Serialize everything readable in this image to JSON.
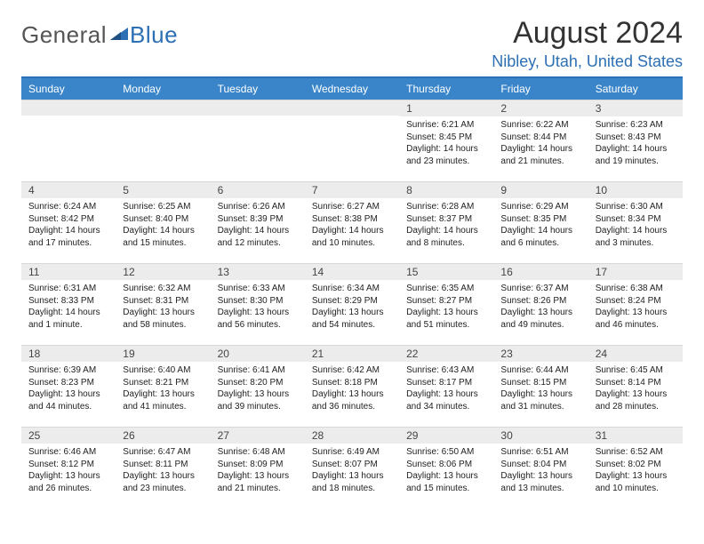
{
  "logo": {
    "general": "General",
    "blue": "Blue"
  },
  "title": "August 2024",
  "location": "Nibley, Utah, United States",
  "colors": {
    "header_bg": "#3a85c9",
    "accent": "#2c6fb5",
    "daynum_bg": "#ececec",
    "text": "#222222"
  },
  "weekdays": [
    "Sunday",
    "Monday",
    "Tuesday",
    "Wednesday",
    "Thursday",
    "Friday",
    "Saturday"
  ],
  "weeks": [
    [
      null,
      null,
      null,
      null,
      {
        "n": "1",
        "sr": "6:21 AM",
        "ss": "8:45 PM",
        "dl": "14 hours and 23 minutes."
      },
      {
        "n": "2",
        "sr": "6:22 AM",
        "ss": "8:44 PM",
        "dl": "14 hours and 21 minutes."
      },
      {
        "n": "3",
        "sr": "6:23 AM",
        "ss": "8:43 PM",
        "dl": "14 hours and 19 minutes."
      }
    ],
    [
      {
        "n": "4",
        "sr": "6:24 AM",
        "ss": "8:42 PM",
        "dl": "14 hours and 17 minutes."
      },
      {
        "n": "5",
        "sr": "6:25 AM",
        "ss": "8:40 PM",
        "dl": "14 hours and 15 minutes."
      },
      {
        "n": "6",
        "sr": "6:26 AM",
        "ss": "8:39 PM",
        "dl": "14 hours and 12 minutes."
      },
      {
        "n": "7",
        "sr": "6:27 AM",
        "ss": "8:38 PM",
        "dl": "14 hours and 10 minutes."
      },
      {
        "n": "8",
        "sr": "6:28 AM",
        "ss": "8:37 PM",
        "dl": "14 hours and 8 minutes."
      },
      {
        "n": "9",
        "sr": "6:29 AM",
        "ss": "8:35 PM",
        "dl": "14 hours and 6 minutes."
      },
      {
        "n": "10",
        "sr": "6:30 AM",
        "ss": "8:34 PM",
        "dl": "14 hours and 3 minutes."
      }
    ],
    [
      {
        "n": "11",
        "sr": "6:31 AM",
        "ss": "8:33 PM",
        "dl": "14 hours and 1 minute."
      },
      {
        "n": "12",
        "sr": "6:32 AM",
        "ss": "8:31 PM",
        "dl": "13 hours and 58 minutes."
      },
      {
        "n": "13",
        "sr": "6:33 AM",
        "ss": "8:30 PM",
        "dl": "13 hours and 56 minutes."
      },
      {
        "n": "14",
        "sr": "6:34 AM",
        "ss": "8:29 PM",
        "dl": "13 hours and 54 minutes."
      },
      {
        "n": "15",
        "sr": "6:35 AM",
        "ss": "8:27 PM",
        "dl": "13 hours and 51 minutes."
      },
      {
        "n": "16",
        "sr": "6:37 AM",
        "ss": "8:26 PM",
        "dl": "13 hours and 49 minutes."
      },
      {
        "n": "17",
        "sr": "6:38 AM",
        "ss": "8:24 PM",
        "dl": "13 hours and 46 minutes."
      }
    ],
    [
      {
        "n": "18",
        "sr": "6:39 AM",
        "ss": "8:23 PM",
        "dl": "13 hours and 44 minutes."
      },
      {
        "n": "19",
        "sr": "6:40 AM",
        "ss": "8:21 PM",
        "dl": "13 hours and 41 minutes."
      },
      {
        "n": "20",
        "sr": "6:41 AM",
        "ss": "8:20 PM",
        "dl": "13 hours and 39 minutes."
      },
      {
        "n": "21",
        "sr": "6:42 AM",
        "ss": "8:18 PM",
        "dl": "13 hours and 36 minutes."
      },
      {
        "n": "22",
        "sr": "6:43 AM",
        "ss": "8:17 PM",
        "dl": "13 hours and 34 minutes."
      },
      {
        "n": "23",
        "sr": "6:44 AM",
        "ss": "8:15 PM",
        "dl": "13 hours and 31 minutes."
      },
      {
        "n": "24",
        "sr": "6:45 AM",
        "ss": "8:14 PM",
        "dl": "13 hours and 28 minutes."
      }
    ],
    [
      {
        "n": "25",
        "sr": "6:46 AM",
        "ss": "8:12 PM",
        "dl": "13 hours and 26 minutes."
      },
      {
        "n": "26",
        "sr": "6:47 AM",
        "ss": "8:11 PM",
        "dl": "13 hours and 23 minutes."
      },
      {
        "n": "27",
        "sr": "6:48 AM",
        "ss": "8:09 PM",
        "dl": "13 hours and 21 minutes."
      },
      {
        "n": "28",
        "sr": "6:49 AM",
        "ss": "8:07 PM",
        "dl": "13 hours and 18 minutes."
      },
      {
        "n": "29",
        "sr": "6:50 AM",
        "ss": "8:06 PM",
        "dl": "13 hours and 15 minutes."
      },
      {
        "n": "30",
        "sr": "6:51 AM",
        "ss": "8:04 PM",
        "dl": "13 hours and 13 minutes."
      },
      {
        "n": "31",
        "sr": "6:52 AM",
        "ss": "8:02 PM",
        "dl": "13 hours and 10 minutes."
      }
    ]
  ],
  "labels": {
    "sunrise": "Sunrise: ",
    "sunset": "Sunset: ",
    "daylight": "Daylight: "
  }
}
